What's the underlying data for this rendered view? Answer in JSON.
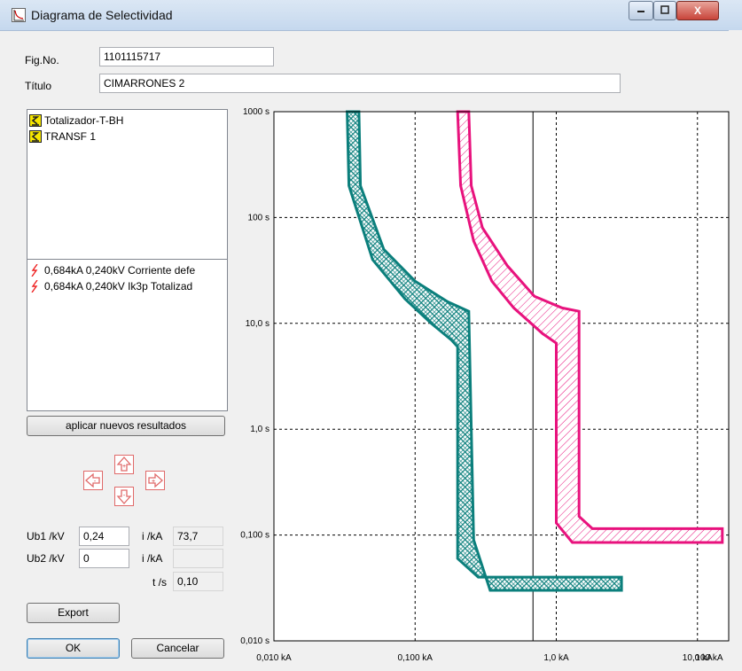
{
  "window": {
    "title": "Diagrama de Selectividad",
    "close_glyph": "X"
  },
  "form": {
    "fig_label": "Fig.No.",
    "fig_value": "1101115717",
    "title_label": "Título",
    "title_value": "CIMARRONES 2"
  },
  "devices": [
    {
      "label": "Totalizador-T-BH",
      "icon": "breaker-icon"
    },
    {
      "label": "TRANSF 1",
      "icon": "breaker-icon"
    }
  ],
  "results": [
    {
      "label": "0,684kA 0,240kV Corriente defe",
      "icon": "lightning-icon"
    },
    {
      "label": "0,684kA 0,240kV Ik3p Totalizad",
      "icon": "lightning-icon"
    }
  ],
  "apply_button": "aplicar nuevos resultados",
  "params": {
    "ub1_label": "Ub1 /kV",
    "ub1_value": "0,24",
    "ub2_label": "Ub2 /kV",
    "ub2_value": "0",
    "i1_label": "i /kA",
    "i1_value": "73,7",
    "i2_label": "i /kA",
    "i2_value": "",
    "t_label": "t /s",
    "t_value": "0,10"
  },
  "buttons": {
    "export": "Export",
    "ok": "OK",
    "cancel": "Cancelar"
  },
  "colors": {
    "teal": "#0b7f7c",
    "pink": "#e8127d"
  },
  "chart_data": {
    "type": "line",
    "title": "",
    "x_scale": "log",
    "y_scale": "log",
    "xlim": [
      0.01,
      100
    ],
    "ylim": [
      0.01,
      1000
    ],
    "x_ticks": [
      "0,010 kA",
      "0,100 kA",
      "1,0 kA",
      "10,0 kA",
      "100 kA"
    ],
    "y_ticks": [
      "0,010 s",
      "0,100 s",
      "1,0 s",
      "10,0 s",
      "100 s",
      "1000 s"
    ],
    "grid": "dashed",
    "marker_x": 0.684,
    "series": [
      {
        "color": "#0b7f7c",
        "left": [
          [
            0.033,
            1000
          ],
          [
            0.034,
            200
          ],
          [
            0.05,
            40
          ],
          [
            0.085,
            17
          ],
          [
            0.13,
            10
          ],
          [
            0.18,
            7
          ],
          [
            0.2,
            6
          ],
          [
            0.2,
            0.06
          ],
          [
            0.28,
            0.04
          ],
          [
            2.9,
            0.04
          ]
        ],
        "right": [
          [
            0.04,
            1000
          ],
          [
            0.041,
            200
          ],
          [
            0.06,
            50
          ],
          [
            0.1,
            25
          ],
          [
            0.17,
            16
          ],
          [
            0.24,
            13
          ],
          [
            0.26,
            0.09
          ],
          [
            0.34,
            0.03
          ],
          [
            2.9,
            0.03
          ]
        ]
      },
      {
        "color": "#e8127d",
        "left": [
          [
            0.2,
            1000
          ],
          [
            0.21,
            200
          ],
          [
            0.26,
            60
          ],
          [
            0.35,
            25
          ],
          [
            0.5,
            14
          ],
          [
            0.8,
            8
          ],
          [
            1.0,
            6.5
          ],
          [
            1.0,
            0.13
          ],
          [
            1.3,
            0.085
          ],
          [
            15,
            0.085
          ]
        ],
        "right": [
          [
            0.24,
            1000
          ],
          [
            0.25,
            200
          ],
          [
            0.3,
            80
          ],
          [
            0.45,
            35
          ],
          [
            0.7,
            18
          ],
          [
            1.1,
            14
          ],
          [
            1.45,
            13
          ],
          [
            1.45,
            0.15
          ],
          [
            1.8,
            0.115
          ],
          [
            15,
            0.115
          ]
        ]
      }
    ]
  }
}
